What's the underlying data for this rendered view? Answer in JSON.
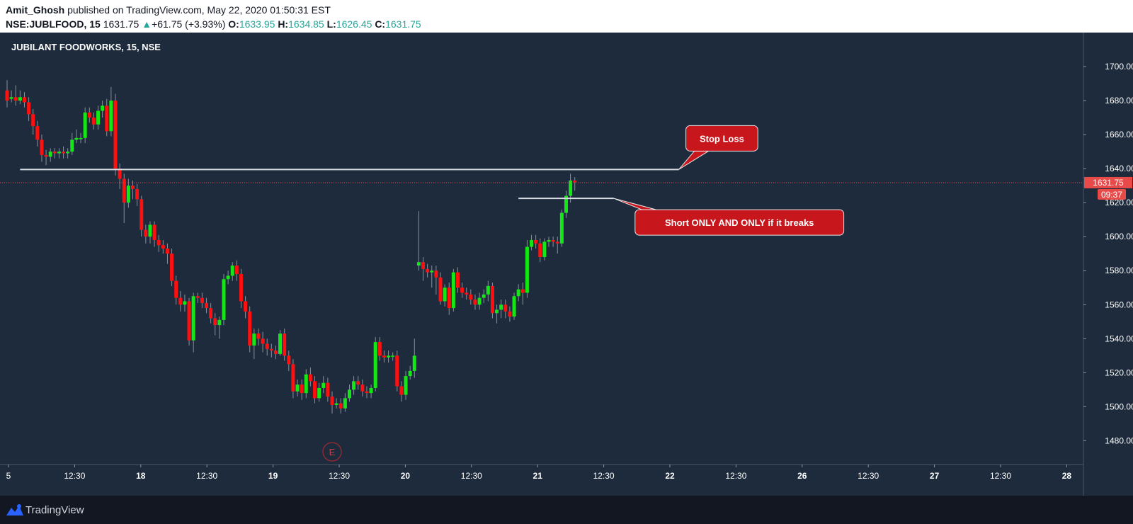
{
  "header": {
    "author": "Amit_Ghosh",
    "published_text": " published on TradingView.com, May 22, 2020 01:50:31 EST",
    "symbol": "NSE:JUBLFOOD, 15",
    "last": "1631.75",
    "change_arrow": "▲",
    "change": "+61.75 (+3.93%)",
    "o_label": "O:",
    "o_value": "1633.95",
    "h_label": "H:",
    "h_value": "1634.85",
    "l_label": "L:",
    "l_value": "1626.45",
    "c_label": "C:",
    "c_value": "1631.75"
  },
  "footer": {
    "brand": "TradingView",
    "logo_icon": "tradingview-logo-icon"
  },
  "colors": {
    "background": "#1e2b3c",
    "up": "#14e814",
    "down": "#ff1010",
    "wick": "#8a9199",
    "price_line": "#e84a4a",
    "callout": "#c8161d",
    "axis_text": "#ffffff"
  },
  "chart_data": {
    "type": "candlestick",
    "title": "JUBILANT FOODWORKS, 15, NSE",
    "ylim": [
      1466,
      1720
    ],
    "y_ticks": [
      1480,
      1500,
      1520,
      1540,
      1560,
      1580,
      1600,
      1620,
      1640,
      1660,
      1680,
      1700
    ],
    "y_tick_labels": [
      "1480.00",
      "1500.00",
      "1520.00",
      "1540.00",
      "1560.00",
      "1580.00",
      "1600.00",
      "1620.00",
      "1640.00",
      "1660.00",
      "1680.00",
      "1700.00"
    ],
    "x_ticks": [
      "5",
      "12:30",
      "18",
      "12:30",
      "19",
      "12:30",
      "20",
      "12:30",
      "21",
      "12:30",
      "22",
      "12:30",
      "26",
      "12:30",
      "27",
      "12:30",
      "28"
    ],
    "x_tick_bold": [
      "18",
      "19",
      "20",
      "21",
      "22",
      "26",
      "27",
      "28"
    ],
    "last_price": 1631.75,
    "last_price_label": "1631.75",
    "countdown": "09:37",
    "candles": [
      [
        1686,
        1680,
        1692,
        1676
      ],
      [
        1681,
        1682,
        1686,
        1679
      ],
      [
        1682,
        1680,
        1689,
        1677
      ],
      [
        1680,
        1682,
        1686,
        1678
      ],
      [
        1682,
        1679,
        1685,
        1676
      ],
      [
        1679,
        1672,
        1682,
        1668
      ],
      [
        1672,
        1665,
        1675,
        1660
      ],
      [
        1665,
        1657,
        1668,
        1653
      ],
      [
        1657,
        1648,
        1660,
        1644
      ],
      [
        1648,
        1647,
        1651,
        1642
      ],
      [
        1647,
        1650,
        1652,
        1644
      ],
      [
        1650,
        1649,
        1652,
        1646
      ],
      [
        1649,
        1650,
        1652,
        1646
      ],
      [
        1650,
        1649,
        1653,
        1646
      ],
      [
        1649,
        1650,
        1652,
        1646
      ],
      [
        1650,
        1657,
        1661,
        1648
      ],
      [
        1657,
        1658,
        1663,
        1655
      ],
      [
        1658,
        1658,
        1661,
        1655
      ],
      [
        1658,
        1673,
        1676,
        1655
      ],
      [
        1673,
        1670,
        1676,
        1667
      ],
      [
        1670,
        1666,
        1673,
        1663
      ],
      [
        1666,
        1674,
        1677,
        1663
      ],
      [
        1674,
        1677,
        1680,
        1670
      ],
      [
        1677,
        1662,
        1681,
        1659
      ],
      [
        1662,
        1680,
        1688,
        1659
      ],
      [
        1680,
        1640,
        1684,
        1636
      ],
      [
        1640,
        1634,
        1643,
        1628
      ],
      [
        1634,
        1620,
        1637,
        1608
      ],
      [
        1620,
        1630,
        1634,
        1617
      ],
      [
        1630,
        1628,
        1633,
        1622
      ],
      [
        1628,
        1622,
        1631,
        1618
      ],
      [
        1622,
        1604,
        1624,
        1600
      ],
      [
        1604,
        1600,
        1607,
        1596
      ],
      [
        1600,
        1607,
        1609,
        1596
      ],
      [
        1607,
        1598,
        1609,
        1594
      ],
      [
        1598,
        1595,
        1601,
        1591
      ],
      [
        1595,
        1593,
        1598,
        1590
      ],
      [
        1593,
        1590,
        1596,
        1584
      ],
      [
        1590,
        1574,
        1593,
        1571
      ],
      [
        1574,
        1564,
        1577,
        1560
      ],
      [
        1564,
        1560,
        1568,
        1556
      ],
      [
        1560,
        1562,
        1566,
        1556
      ],
      [
        1562,
        1539,
        1564,
        1536
      ],
      [
        1539,
        1565,
        1567,
        1532
      ],
      [
        1565,
        1564,
        1567,
        1561
      ],
      [
        1564,
        1561,
        1567,
        1558
      ],
      [
        1561,
        1558,
        1564,
        1555
      ],
      [
        1558,
        1552,
        1561,
        1549
      ],
      [
        1552,
        1548,
        1555,
        1542
      ],
      [
        1548,
        1551,
        1553,
        1540
      ],
      [
        1551,
        1575,
        1578,
        1548
      ],
      [
        1575,
        1577,
        1580,
        1572
      ],
      [
        1577,
        1583,
        1585,
        1574
      ],
      [
        1583,
        1578,
        1586,
        1574
      ],
      [
        1578,
        1562,
        1581,
        1558
      ],
      [
        1562,
        1556,
        1565,
        1552
      ],
      [
        1556,
        1536,
        1559,
        1532
      ],
      [
        1536,
        1543,
        1546,
        1528
      ],
      [
        1543,
        1540,
        1546,
        1536
      ],
      [
        1540,
        1537,
        1544,
        1532
      ],
      [
        1537,
        1534,
        1540,
        1530
      ],
      [
        1534,
        1533,
        1537,
        1529
      ],
      [
        1533,
        1531,
        1536,
        1528
      ],
      [
        1531,
        1543,
        1545,
        1530
      ],
      [
        1543,
        1530,
        1546,
        1527
      ],
      [
        1530,
        1525,
        1533,
        1521
      ],
      [
        1525,
        1509,
        1528,
        1505
      ],
      [
        1509,
        1513,
        1516,
        1506
      ],
      [
        1513,
        1508,
        1516,
        1504
      ],
      [
        1508,
        1519,
        1522,
        1505
      ],
      [
        1519,
        1515,
        1523,
        1512
      ],
      [
        1515,
        1505,
        1518,
        1502
      ],
      [
        1505,
        1511,
        1514,
        1503
      ],
      [
        1511,
        1514,
        1518,
        1508
      ],
      [
        1514,
        1506,
        1517,
        1503
      ],
      [
        1506,
        1501,
        1509,
        1496
      ],
      [
        1501,
        1502,
        1505,
        1499
      ],
      [
        1502,
        1499,
        1505,
        1496
      ],
      [
        1499,
        1505,
        1508,
        1497
      ],
      [
        1505,
        1510,
        1513,
        1503
      ],
      [
        1510,
        1515,
        1518,
        1507
      ],
      [
        1515,
        1513,
        1518,
        1510
      ],
      [
        1513,
        1509,
        1516,
        1506
      ],
      [
        1509,
        1508,
        1512,
        1505
      ],
      [
        1508,
        1511,
        1513,
        1505
      ],
      [
        1511,
        1538,
        1541,
        1509
      ],
      [
        1538,
        1530,
        1541,
        1527
      ],
      [
        1530,
        1529,
        1533,
        1526
      ],
      [
        1529,
        1530,
        1533,
        1526
      ],
      [
        1530,
        1530,
        1532,
        1527
      ],
      [
        1530,
        1512,
        1533,
        1509
      ],
      [
        1512,
        1507,
        1515,
        1503
      ],
      [
        1507,
        1518,
        1521,
        1504
      ],
      [
        1518,
        1521,
        1524,
        1516
      ],
      [
        1521,
        1530,
        1540,
        1517
      ],
      [
        1583,
        1585,
        1615,
        1580
      ],
      [
        1585,
        1581,
        1588,
        1574
      ],
      [
        1581,
        1579,
        1584,
        1576
      ],
      [
        1579,
        1580,
        1583,
        1570
      ],
      [
        1580,
        1576,
        1583,
        1566
      ],
      [
        1576,
        1562,
        1579,
        1560
      ],
      [
        1562,
        1570,
        1572,
        1559
      ],
      [
        1570,
        1558,
        1573,
        1554
      ],
      [
        1558,
        1579,
        1581,
        1556
      ],
      [
        1579,
        1570,
        1582,
        1567
      ],
      [
        1570,
        1567,
        1573,
        1564
      ],
      [
        1567,
        1566,
        1570,
        1563
      ],
      [
        1566,
        1563,
        1569,
        1560
      ],
      [
        1563,
        1560,
        1566,
        1557
      ],
      [
        1560,
        1564,
        1567,
        1557
      ],
      [
        1564,
        1566,
        1569,
        1561
      ],
      [
        1566,
        1571,
        1574,
        1562
      ],
      [
        1571,
        1555,
        1573,
        1552
      ],
      [
        1555,
        1557,
        1560,
        1549
      ],
      [
        1557,
        1560,
        1563,
        1552
      ],
      [
        1560,
        1556,
        1563,
        1552
      ],
      [
        1556,
        1553,
        1559,
        1550
      ],
      [
        1553,
        1565,
        1567,
        1551
      ],
      [
        1565,
        1569,
        1572,
        1562
      ],
      [
        1569,
        1567,
        1573,
        1560
      ],
      [
        1567,
        1594,
        1598,
        1564
      ],
      [
        1594,
        1598,
        1601,
        1592
      ],
      [
        1598,
        1596,
        1601,
        1593
      ],
      [
        1596,
        1588,
        1599,
        1585
      ],
      [
        1588,
        1597,
        1599,
        1586
      ],
      [
        1597,
        1598,
        1600,
        1594
      ],
      [
        1598,
        1597,
        1600,
        1594
      ],
      [
        1597,
        1596,
        1600,
        1590
      ],
      [
        1596,
        1614,
        1616,
        1594
      ],
      [
        1614,
        1624,
        1627,
        1611
      ],
      [
        1624,
        1633,
        1637,
        1620
      ],
      [
        1633,
        1632,
        1635,
        1627
      ]
    ],
    "annotations": [
      {
        "type": "hline",
        "from_index": 3,
        "to_index": 155,
        "price": 1639.5
      },
      {
        "type": "hline",
        "from_index": 118,
        "to_index": 140,
        "price": 1622.5
      },
      {
        "type": "callout",
        "text": "Stop Loss",
        "anchor_index": 155,
        "anchor_price": 1639.5
      },
      {
        "type": "callout",
        "text": "Short ONLY AND ONLY if it breaks",
        "anchor_index": 140,
        "anchor_price": 1622.5
      },
      {
        "type": "event",
        "label": "E",
        "index": 75
      }
    ]
  }
}
